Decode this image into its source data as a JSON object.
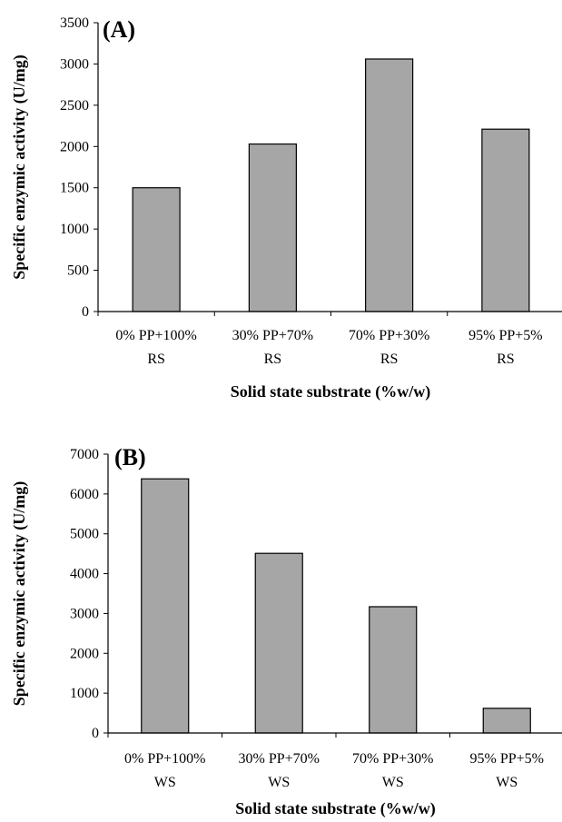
{
  "chart_data": [
    {
      "type": "bar",
      "panel_label": "(A)",
      "categories": [
        [
          "0% PP+100%",
          "RS"
        ],
        [
          "30% PP+70%",
          "RS"
        ],
        [
          "70% PP+30%",
          "RS"
        ],
        [
          "95% PP+5%",
          "RS"
        ]
      ],
      "values": [
        1500,
        2030,
        3060,
        2210
      ],
      "xlabel": "Solid state substrate (%w/w)",
      "ylabel": "Specific enzymic activity (U/mg)",
      "ylim": [
        0,
        3500
      ],
      "yticks": [
        0,
        500,
        1000,
        1500,
        2000,
        2500,
        3000,
        3500
      ],
      "grid": false,
      "bar_color": "#a6a6a6"
    },
    {
      "type": "bar",
      "panel_label": "(B)",
      "categories": [
        [
          "0% PP+100%",
          "WS"
        ],
        [
          "30% PP+70%",
          "WS"
        ],
        [
          "70% PP+30%",
          "WS"
        ],
        [
          "95% PP+5%",
          "WS"
        ]
      ],
      "values": [
        6380,
        4510,
        3170,
        620
      ],
      "xlabel": "Solid state substrate (%w/w)",
      "ylabel": "Specific enzymic activity (U/mg)",
      "ylim": [
        0,
        7000
      ],
      "yticks": [
        0,
        1000,
        2000,
        3000,
        4000,
        5000,
        6000,
        7000
      ],
      "grid": false,
      "bar_color": "#a6a6a6"
    }
  ]
}
